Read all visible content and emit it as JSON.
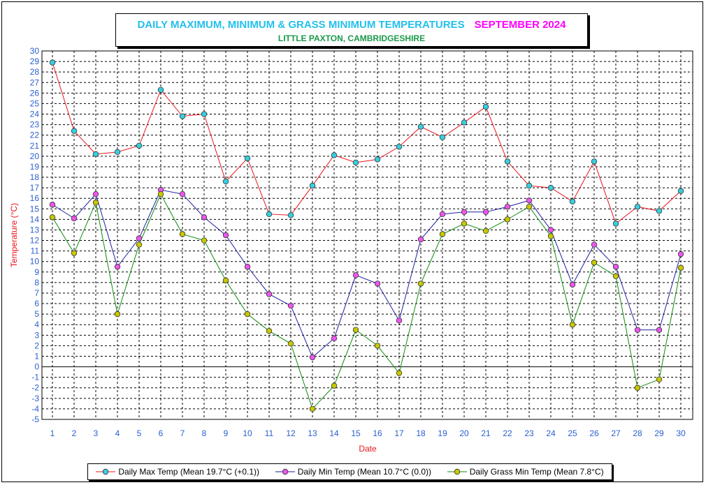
{
  "chart_data": {
    "type": "line",
    "title": "DAILY MAXIMUM, MINIMUM & GRASS MINIMUM TEMPERATURES",
    "title_month": "SEPTEMBER 2024",
    "subtitle": "LITTLE PAXTON, CAMBRIDGESHIRE",
    "xlabel": "Date",
    "ylabel": "Temperature (°C)",
    "ylim": [
      -5,
      30
    ],
    "grid": true,
    "legend_position": "bottom",
    "x": [
      1,
      2,
      3,
      4,
      5,
      6,
      7,
      8,
      9,
      10,
      11,
      12,
      13,
      14,
      15,
      16,
      17,
      18,
      19,
      20,
      21,
      22,
      23,
      24,
      25,
      26,
      27,
      28,
      29,
      30
    ],
    "series": [
      {
        "name": "Daily Max Temp (Mean 19.7°C (+0.1))",
        "line_color": "#e8141c",
        "marker_color": "#36cfe0",
        "values": [
          28.9,
          22.4,
          20.2,
          20.4,
          21.0,
          26.3,
          23.8,
          24.0,
          17.6,
          19.8,
          14.5,
          14.4,
          17.2,
          20.1,
          19.4,
          19.7,
          20.9,
          22.8,
          21.8,
          23.2,
          24.7,
          19.5,
          17.2,
          17.0,
          15.7,
          19.5,
          13.6,
          15.2,
          14.8,
          16.7
        ]
      },
      {
        "name": "Daily Min Temp (Mean 10.7°C (0.0))",
        "line_color": "#1e1ea0",
        "marker_color": "#ee55ee",
        "values": [
          15.4,
          14.1,
          16.4,
          9.5,
          12.2,
          16.8,
          16.4,
          14.2,
          12.5,
          9.5,
          6.9,
          5.8,
          0.9,
          2.7,
          8.7,
          7.9,
          4.4,
          12.1,
          14.5,
          14.7,
          14.7,
          15.2,
          15.8,
          13.0,
          7.8,
          11.6,
          9.5,
          3.5,
          3.5,
          10.7
        ]
      },
      {
        "name": "Daily Grass Min Temp (Mean 7.8°C)",
        "line_color": "#0e8a0e",
        "marker_color": "#c8c800",
        "values": [
          14.2,
          10.8,
          15.6,
          5.0,
          11.6,
          16.4,
          12.6,
          12.0,
          8.2,
          5.0,
          3.4,
          2.2,
          -4.0,
          -1.8,
          3.5,
          2.0,
          -0.6,
          7.9,
          12.6,
          13.6,
          12.9,
          14.0,
          15.2,
          12.4,
          4.0,
          9.9,
          8.6,
          -2.0,
          -1.2,
          9.4
        ]
      }
    ]
  }
}
